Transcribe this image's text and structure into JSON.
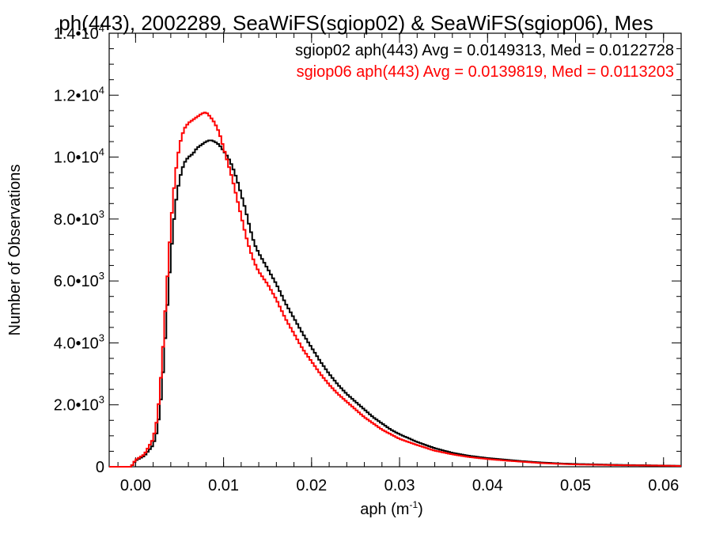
{
  "chart_data": {
    "type": "line",
    "title": "ph(443), 2002289, SeaWiFS(sgiop02) & SeaWiFS(sgiop06), Mes",
    "xlabel": "aph (m",
    "xlabel_sup": "-1",
    "xlabel_tail": ")",
    "ylabel": "Number of Observations",
    "xlim": [
      -0.003,
      0.062
    ],
    "ylim": [
      0,
      14000
    ],
    "x_ticks": [
      0.0,
      0.01,
      0.02,
      0.03,
      0.04,
      0.05,
      0.06
    ],
    "x_tick_labels": [
      "0.00",
      "0.01",
      "0.02",
      "0.03",
      "0.04",
      "0.05",
      "0.06"
    ],
    "y_ticks": [
      {
        "value": 0,
        "mant": "0",
        "exp": ""
      },
      {
        "value": 2000,
        "mant": "2.0•10",
        "exp": "3"
      },
      {
        "value": 4000,
        "mant": "4.0•10",
        "exp": "3"
      },
      {
        "value": 6000,
        "mant": "6.0•10",
        "exp": "3"
      },
      {
        "value": 8000,
        "mant": "8.0•10",
        "exp": "3"
      },
      {
        "value": 10000,
        "mant": "1.0•10",
        "exp": "4"
      },
      {
        "value": 12000,
        "mant": "1.2•10",
        "exp": "4"
      },
      {
        "value": 14000,
        "mant": "1.4•10",
        "exp": "4"
      }
    ],
    "annotations": [
      {
        "text": "sgiop02 aph(443) Avg = 0.0149313, Med = 0.0122728",
        "color": "#000000"
      },
      {
        "text": "sgiop06 aph(443) Avg = 0.0139819, Med = 0.0113203",
        "color": "#ff0000"
      }
    ],
    "series": [
      {
        "color": "#000000",
        "x": [
          -0.003,
          -0.0005,
          0.0,
          0.001,
          0.002,
          0.0025,
          0.003,
          0.0035,
          0.004,
          0.0045,
          0.005,
          0.0055,
          0.006,
          0.0065,
          0.007,
          0.0075,
          0.008,
          0.0085,
          0.009,
          0.0095,
          0.01,
          0.0105,
          0.011,
          0.0115,
          0.012,
          0.0125,
          0.013,
          0.0135,
          0.014,
          0.015,
          0.016,
          0.017,
          0.018,
          0.019,
          0.02,
          0.021,
          0.022,
          0.023,
          0.024,
          0.025,
          0.026,
          0.027,
          0.028,
          0.029,
          0.03,
          0.032,
          0.034,
          0.036,
          0.038,
          0.04,
          0.042,
          0.044,
          0.046,
          0.048,
          0.05,
          0.055,
          0.06,
          0.062
        ],
        "y": [
          0,
          0,
          200,
          350,
          700,
          1200,
          2500,
          4700,
          6800,
          8400,
          9300,
          9800,
          10000,
          10100,
          10300,
          10400,
          10500,
          10550,
          10500,
          10400,
          10200,
          10000,
          9700,
          9300,
          8800,
          8300,
          7700,
          7200,
          6900,
          6400,
          5900,
          5300,
          4800,
          4300,
          3850,
          3400,
          3000,
          2650,
          2350,
          2100,
          1850,
          1600,
          1400,
          1200,
          1050,
          800,
          600,
          450,
          350,
          280,
          230,
          180,
          140,
          110,
          90,
          60,
          40,
          30
        ]
      },
      {
        "color": "#ff0000",
        "x": [
          -0.003,
          -0.0005,
          0.0,
          0.001,
          0.002,
          0.0025,
          0.003,
          0.0035,
          0.004,
          0.0045,
          0.005,
          0.0055,
          0.006,
          0.0065,
          0.007,
          0.0075,
          0.008,
          0.0085,
          0.009,
          0.0095,
          0.01,
          0.0105,
          0.011,
          0.0115,
          0.012,
          0.0125,
          0.013,
          0.0135,
          0.014,
          0.015,
          0.016,
          0.017,
          0.018,
          0.019,
          0.02,
          0.021,
          0.022,
          0.023,
          0.024,
          0.025,
          0.026,
          0.027,
          0.028,
          0.029,
          0.03,
          0.032,
          0.034,
          0.036,
          0.038,
          0.04,
          0.042,
          0.044,
          0.046,
          0.048,
          0.05,
          0.055,
          0.06,
          0.062
        ],
        "y": [
          0,
          0,
          220,
          400,
          900,
          1600,
          3300,
          5600,
          7800,
          9400,
          10400,
          10900,
          11100,
          11200,
          11300,
          11400,
          11450,
          11300,
          11100,
          10800,
          10300,
          9800,
          9300,
          8700,
          8100,
          7500,
          7000,
          6600,
          6300,
          5900,
          5400,
          4800,
          4300,
          3800,
          3400,
          3000,
          2650,
          2350,
          2100,
          1850,
          1600,
          1400,
          1200,
          1050,
          900,
          700,
          520,
          400,
          310,
          250,
          200,
          160,
          120,
          95,
          75,
          50,
          35,
          25
        ]
      }
    ]
  }
}
